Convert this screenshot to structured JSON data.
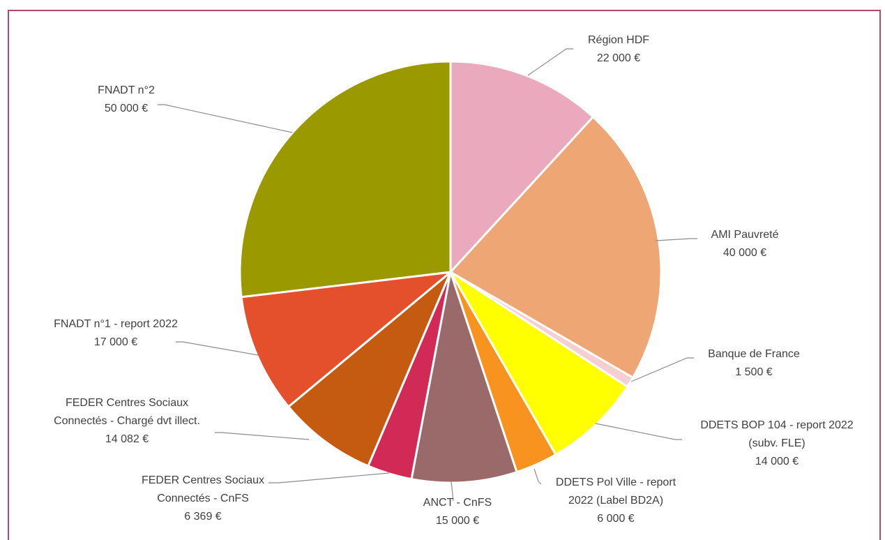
{
  "chart_data": {
    "type": "pie",
    "unit": "€",
    "start_angle_deg": 0,
    "direction": "clockwise",
    "slices": [
      {
        "name": "Région HDF",
        "value": 22000,
        "value_label": "22 000 €",
        "color": "#eba9bd",
        "label_lines": [
          "Région HDF",
          "22 000 €"
        ]
      },
      {
        "name": "AMI Pauvreté",
        "value": 40000,
        "value_label": "40 000 €",
        "color": "#eea674",
        "label_lines": [
          "AMI Pauvreté",
          "40 000 €"
        ]
      },
      {
        "name": "Banque de France",
        "value": 1500,
        "value_label": "1 500 €",
        "color": "#f6cfd2",
        "label_lines": [
          "Banque de France",
          "1 500 €"
        ]
      },
      {
        "name": "DDETS BOP 104 - report 2022 (subv. FLE)",
        "value": 14000,
        "value_label": "14 000 €",
        "color": "#ffff00",
        "label_lines": [
          "DDETS BOP 104 - report 2022",
          "(subv. FLE)",
          "14 000 €"
        ]
      },
      {
        "name": "DDETS Pol Ville - report 2022 (Label BD2A)",
        "value": 6000,
        "value_label": "6 000 €",
        "color": "#f7931e",
        "label_lines": [
          "DDETS Pol Ville - report",
          "2022 (Label BD2A)",
          "6 000 €"
        ]
      },
      {
        "name": "ANCT - CnFS",
        "value": 15000,
        "value_label": "15 000 €",
        "color": "#9a6969",
        "label_lines": [
          "ANCT - CnFS",
          "15 000 €"
        ]
      },
      {
        "name": "FEDER Centres Sociaux Connectés - CnFS",
        "value": 6369,
        "value_label": "6 369 €",
        "color": "#d22a56",
        "label_lines": [
          "FEDER Centres Sociaux",
          "Connectés - CnFS",
          "6 369 €"
        ]
      },
      {
        "name": "FEDER Centres Sociaux Connectés - Chargé dvt illect.",
        "value": 14082,
        "value_label": "14 082 €",
        "color": "#c55a11",
        "label_lines": [
          "FEDER Centres Sociaux",
          "Connectés - Chargé dvt illect.",
          "14 082 €"
        ]
      },
      {
        "name": "FNADT n°1 - report 2022",
        "value": 17000,
        "value_label": "17 000 €",
        "color": "#e5502c",
        "label_lines": [
          "FNADT n°1 - report 2022",
          "17 000 €"
        ]
      },
      {
        "name": "FNADT n°2",
        "value": 50000,
        "value_label": "50 000 €",
        "color": "#9a9a00",
        "label_lines": [
          "FNADT n°2",
          "50 000 €"
        ]
      }
    ],
    "legend": "none",
    "labels": "outside with leader lines"
  },
  "style": {
    "frame_color": "#b3476c",
    "leader_color": "#8c8c8c",
    "label_color": "#3f3f3f"
  }
}
